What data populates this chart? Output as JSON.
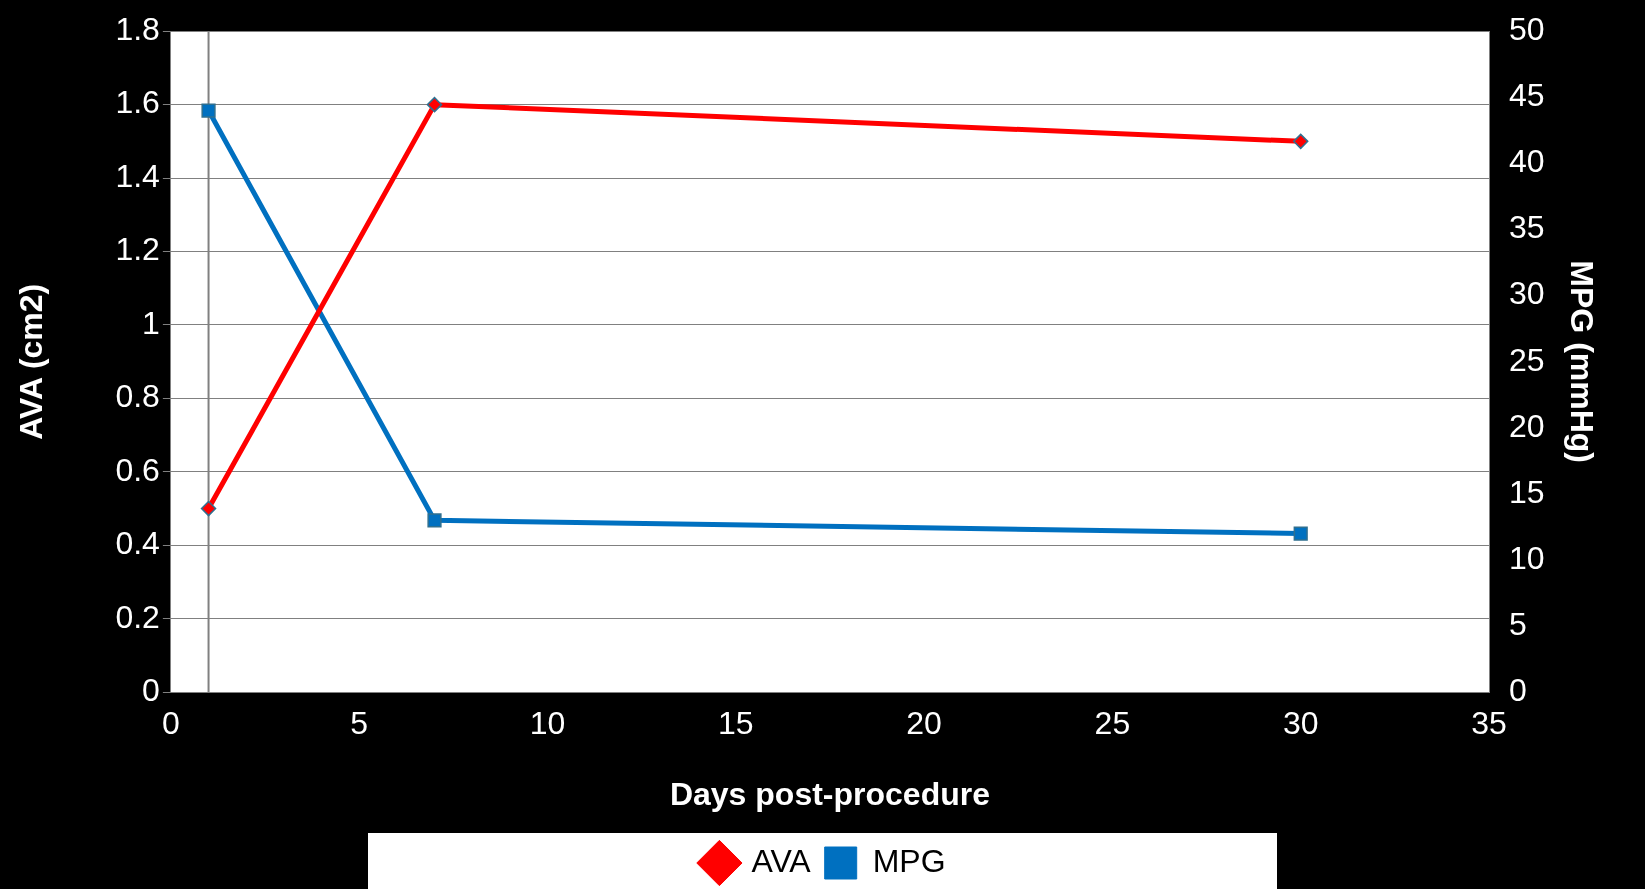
{
  "chart_data": {
    "type": "line",
    "xlabel": "Days post-procedure",
    "ylabel": "AVA (cm2)",
    "y2label": "MPG (mmHg)",
    "x": [
      1,
      7,
      30
    ],
    "series": [
      {
        "name": "AVA",
        "color": "#ff0000",
        "values": [
          0.5,
          1.6,
          1.5
        ],
        "marker": "diamond"
      },
      {
        "name": "MPG",
        "color": "#0070c0",
        "values": [
          44,
          13,
          12
        ],
        "axis": "y2",
        "marker": "square"
      }
    ],
    "xlim": [
      0,
      35
    ],
    "xticks": [
      0,
      5,
      10,
      15,
      20,
      25,
      30,
      35
    ],
    "ylim": [
      0,
      1.8
    ],
    "yticks": [
      0,
      0.2,
      0.4,
      0.6,
      0.8,
      1,
      1.2,
      1.4,
      1.6,
      1.8
    ],
    "y2lim": [
      0,
      50
    ],
    "y2ticks": [
      0,
      5,
      10,
      15,
      20,
      25,
      30,
      35,
      40,
      45,
      50
    ],
    "ref_lines": [
      {
        "axis": "x",
        "value": 1,
        "color": "#808080"
      }
    ],
    "grid": "y",
    "legend": "bottom",
    "line_style": "solid"
  }
}
